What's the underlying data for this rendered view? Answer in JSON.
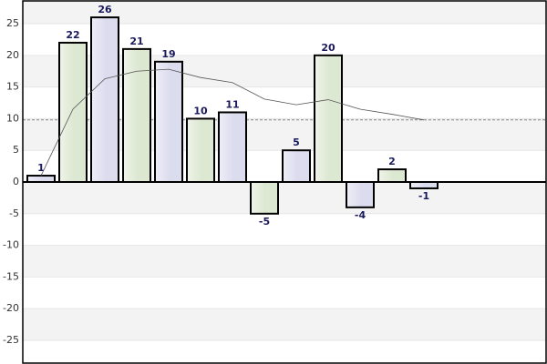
{
  "chart_data": {
    "type": "bar",
    "values": [
      1,
      22,
      26,
      21,
      19,
      10,
      11,
      -5,
      5,
      20,
      -4,
      2,
      -1
    ],
    "colors": [
      "#dcdcef",
      "#dde8d2",
      "#dcdcef",
      "#dde8d2",
      "#dcdcef",
      "#dde8d2",
      "#dcdcef",
      "#dde8d2",
      "#dcdcef",
      "#dde8d2",
      "#dcdcef",
      "#dde8d2",
      "#dcdcef"
    ],
    "line_values": [
      1,
      11.5,
      16.3,
      17.5,
      17.8,
      16.5,
      15.7,
      13.1,
      12.2,
      13,
      11.5,
      10.7,
      9.8
    ],
    "average_line": 9.8,
    "ylim": [
      -28.6,
      28.6
    ],
    "yticks": [
      -25,
      -20,
      -15,
      -10,
      -5,
      0,
      5,
      10,
      15,
      20,
      25
    ],
    "grid": true
  }
}
